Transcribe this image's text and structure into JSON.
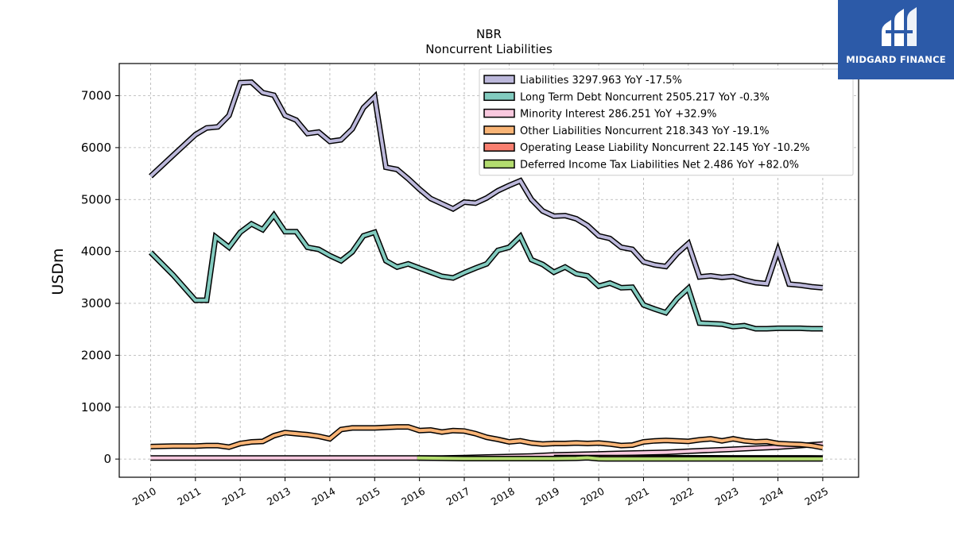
{
  "brand": {
    "name": "MIDGARD FINANCE",
    "bg_color": "#2c5aa8"
  },
  "chart_data": {
    "type": "line",
    "title": "NBR",
    "subtitle": "Noncurrent  Liabilities",
    "ylabel": "USDm",
    "xlabel": "",
    "xlim": [
      2009.3,
      2025.8
    ],
    "ylim": [
      -350,
      7620
    ],
    "x_ticks": [
      2010,
      2011,
      2012,
      2013,
      2014,
      2015,
      2016,
      2017,
      2018,
      2019,
      2020,
      2021,
      2022,
      2023,
      2024,
      2025
    ],
    "y_ticks": [
      0,
      1000,
      2000,
      3000,
      4000,
      5000,
      6000,
      7000
    ],
    "grid": true,
    "legend_position": "top-right",
    "series": [
      {
        "name": "Liabilities",
        "legend": "Liabilities  3297.963 YoY -17.5%",
        "color": "#bcb8db",
        "x": [
          2010.0,
          2010.5,
          2011.0,
          2011.25,
          2011.5,
          2011.75,
          2012.0,
          2012.25,
          2012.5,
          2012.75,
          2013.0,
          2013.25,
          2013.5,
          2013.75,
          2014.0,
          2014.25,
          2014.5,
          2014.75,
          2015.0,
          2015.25,
          2015.5,
          2015.75,
          2016.0,
          2016.25,
          2016.5,
          2016.75,
          2017.0,
          2017.25,
          2017.5,
          2017.75,
          2018.0,
          2018.25,
          2018.5,
          2018.75,
          2019.0,
          2019.25,
          2019.5,
          2019.75,
          2020.0,
          2020.25,
          2020.5,
          2020.75,
          2021.0,
          2021.25,
          2021.5,
          2021.75,
          2022.0,
          2022.25,
          2022.5,
          2022.75,
          2023.0,
          2023.25,
          2023.5,
          2023.75,
          2024.0,
          2024.25,
          2024.5,
          2024.75,
          2025.0
        ],
        "y": [
          5450,
          5850,
          6250,
          6380,
          6400,
          6620,
          7250,
          7260,
          7060,
          7010,
          6620,
          6530,
          6270,
          6300,
          6120,
          6150,
          6360,
          6770,
          6980,
          5620,
          5580,
          5400,
          5200,
          5020,
          4920,
          4820,
          4950,
          4930,
          5030,
          5170,
          5270,
          5360,
          5000,
          4780,
          4680,
          4690,
          4630,
          4500,
          4300,
          4250,
          4080,
          4040,
          3800,
          3740,
          3710,
          3960,
          4150,
          3510,
          3530,
          3500,
          3520,
          3450,
          3400,
          3380,
          4020,
          3370,
          3350,
          3320,
          3300
        ]
      },
      {
        "name": "Long Term Debt Noncurrent",
        "legend": "Long Term Debt Noncurrent  2505.217 YoY -0.3%",
        "color": "#82cbbf",
        "x": [
          2010.0,
          2010.5,
          2011.0,
          2011.25,
          2011.45,
          2011.75,
          2012.0,
          2012.25,
          2012.5,
          2012.75,
          2013.0,
          2013.25,
          2013.5,
          2013.75,
          2014.0,
          2014.25,
          2014.5,
          2014.75,
          2015.0,
          2015.25,
          2015.5,
          2015.75,
          2016.0,
          2016.25,
          2016.5,
          2016.75,
          2017.0,
          2017.25,
          2017.5,
          2017.75,
          2018.0,
          2018.25,
          2018.5,
          2018.75,
          2019.0,
          2019.25,
          2019.5,
          2019.75,
          2020.0,
          2020.25,
          2020.5,
          2020.75,
          2021.0,
          2021.25,
          2021.5,
          2021.75,
          2022.0,
          2022.25,
          2022.5,
          2022.75,
          2023.0,
          2023.25,
          2023.5,
          2023.75,
          2024.0,
          2024.25,
          2024.5,
          2024.75,
          2025.0
        ],
        "y": [
          3980,
          3550,
          3060,
          3060,
          4280,
          4080,
          4370,
          4530,
          4420,
          4700,
          4380,
          4380,
          4080,
          4040,
          3920,
          3820,
          3990,
          4300,
          4370,
          3820,
          3700,
          3760,
          3680,
          3600,
          3520,
          3490,
          3590,
          3680,
          3760,
          4020,
          4080,
          4290,
          3840,
          3750,
          3600,
          3700,
          3570,
          3530,
          3330,
          3390,
          3300,
          3310,
          2970,
          2890,
          2820,
          3090,
          3290,
          2620,
          2610,
          2600,
          2550,
          2570,
          2510,
          2510,
          2520,
          2520,
          2520,
          2510,
          2510
        ]
      },
      {
        "name": "Minority Interest",
        "legend": "Minority Interest  286.251 YoY +32.9%",
        "color": "#f9c9df",
        "x": [
          2010.0,
          2010.5,
          2011.0,
          2011.5,
          2012.0,
          2012.5,
          2013.0,
          2013.5,
          2014.0,
          2014.5,
          2015.0,
          2015.5,
          2016.0,
          2016.5,
          2017.0,
          2017.5,
          2018.0,
          2018.5,
          2019.0,
          2019.5,
          2020.0,
          2020.5,
          2021.0,
          2021.5,
          2022.0,
          2022.5,
          2023.0,
          2023.5,
          2024.0,
          2024.5,
          2025.0
        ],
        "y": [
          20,
          20,
          20,
          20,
          20,
          20,
          20,
          20,
          20,
          20,
          20,
          20,
          20,
          20,
          30,
          40,
          50,
          60,
          80,
          90,
          100,
          110,
          120,
          130,
          150,
          170,
          190,
          210,
          230,
          260,
          290
        ]
      },
      {
        "name": "Other Liabilities Noncurrent",
        "legend": "Other Liabilities Noncurrent  218.343 YoY -19.1%",
        "color": "#f9b476",
        "x": [
          2010.0,
          2010.5,
          2011.0,
          2011.25,
          2011.5,
          2011.75,
          2012.0,
          2012.25,
          2012.5,
          2012.75,
          2013.0,
          2013.25,
          2013.5,
          2013.75,
          2014.0,
          2014.25,
          2014.5,
          2014.75,
          2015.0,
          2015.25,
          2015.5,
          2015.75,
          2016.0,
          2016.25,
          2016.5,
          2016.75,
          2017.0,
          2017.25,
          2017.5,
          2017.75,
          2018.0,
          2018.25,
          2018.5,
          2018.75,
          2019.0,
          2019.25,
          2019.5,
          2019.75,
          2020.0,
          2020.25,
          2020.5,
          2020.75,
          2021.0,
          2021.25,
          2021.5,
          2021.75,
          2022.0,
          2022.25,
          2022.5,
          2022.75,
          2023.0,
          2023.25,
          2023.5,
          2023.75,
          2024.0,
          2024.25,
          2024.5,
          2024.75,
          2025.0
        ],
        "y": [
          240,
          250,
          250,
          260,
          260,
          230,
          300,
          330,
          340,
          450,
          510,
          490,
          470,
          440,
          390,
          570,
          600,
          600,
          600,
          610,
          620,
          620,
          550,
          560,
          520,
          550,
          540,
          490,
          420,
          380,
          330,
          350,
          310,
          290,
          300,
          300,
          310,
          300,
          310,
          290,
          260,
          270,
          330,
          350,
          360,
          350,
          340,
          370,
          390,
          350,
          390,
          350,
          330,
          340,
          300,
          290,
          280,
          260,
          220
        ]
      },
      {
        "name": "Operating Lease Liability Noncurrent",
        "legend": "Operating Lease Liability Noncurrent  22.145 YoY -10.2%",
        "color": "#f97f70",
        "x": [
          2019.0,
          2019.5,
          2020.0,
          2020.5,
          2021.0,
          2021.5,
          2022.0,
          2022.5,
          2023.0,
          2023.5,
          2024.0,
          2024.5,
          2025.0
        ],
        "y": [
          30,
          30,
          28,
          28,
          27,
          26,
          25,
          25,
          24,
          24,
          23,
          23,
          22
        ]
      },
      {
        "name": "Deferred Income Tax Liabilities Net",
        "legend": "Deferred Income Tax Liabilities Net  2.486 YoY +82.0%",
        "color": "#b3dc6f",
        "x": [
          2015.95,
          2016.5,
          2017.0,
          2017.5,
          2018.0,
          2018.5,
          2019.0,
          2019.5,
          2019.75,
          2020.0,
          2020.5,
          2021.0,
          2021.5,
          2022.0,
          2022.5,
          2023.0,
          2023.5,
          2024.0,
          2024.5,
          2025.0
        ],
        "y": [
          20,
          15,
          10,
          10,
          10,
          10,
          10,
          15,
          25,
          5,
          3,
          3,
          3,
          3,
          3,
          3,
          3,
          3,
          3,
          3
        ]
      }
    ]
  }
}
